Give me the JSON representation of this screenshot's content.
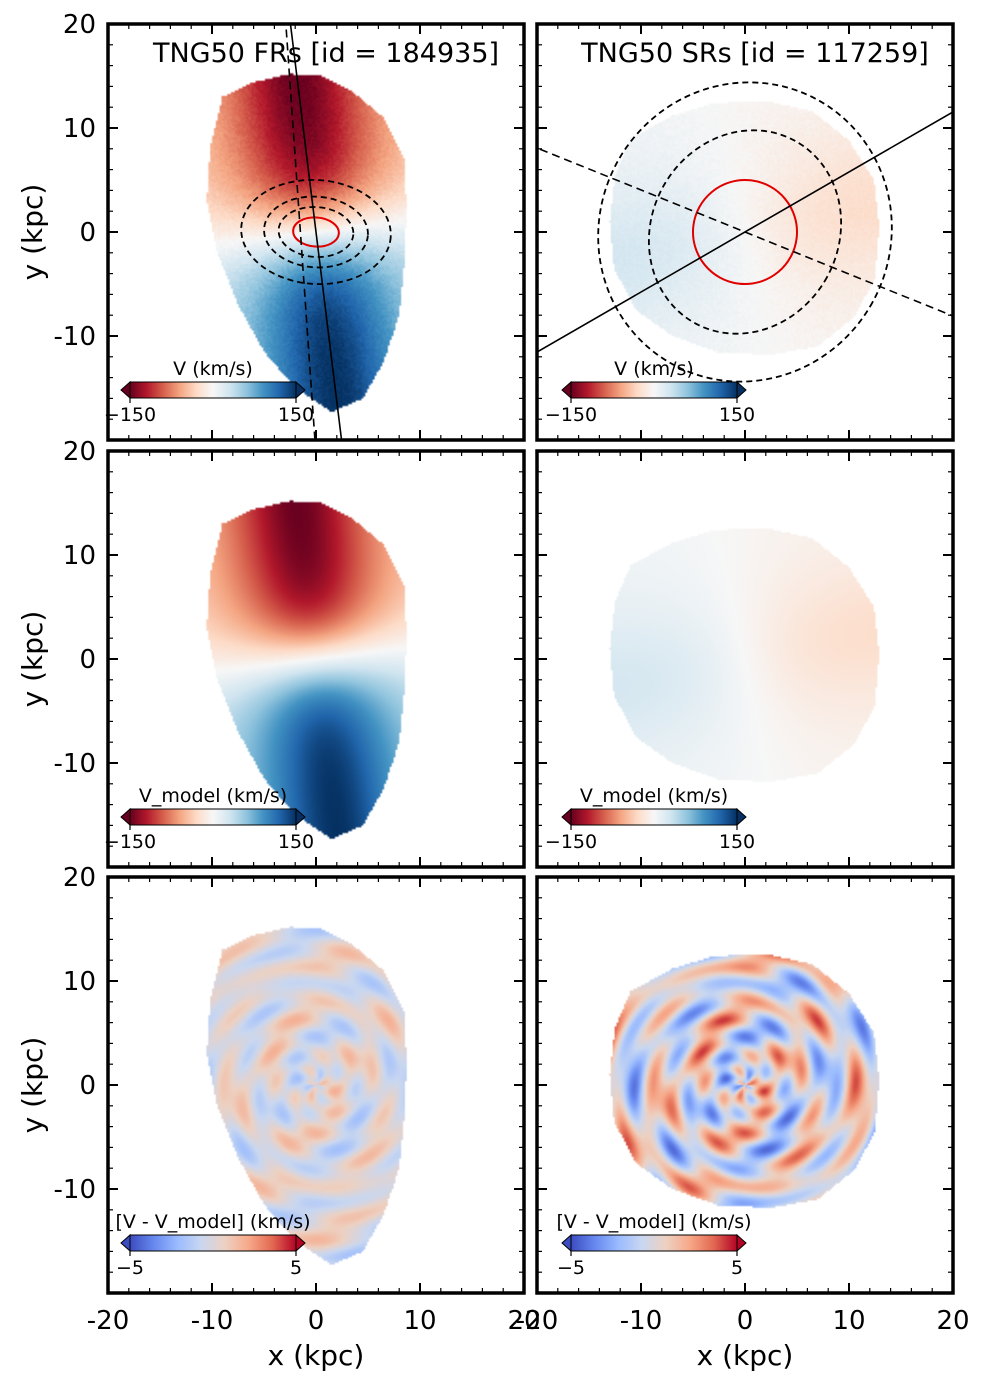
{
  "chart_data": {
    "type": "map",
    "layout": "3 rows x 2 columns, shared x and y axes",
    "xlabel": "x (kpc)",
    "ylabel": "y (kpc)",
    "xlim": [
      -20,
      20
    ],
    "ylim": [
      -20,
      20
    ],
    "x_ticks": [
      "-20",
      "-10",
      "0",
      "10",
      "20"
    ],
    "y_ticks": [
      "-10",
      "0",
      "10",
      "20"
    ],
    "columns": [
      {
        "id": "fr",
        "title": "TNG50 FRs [id = 184935]",
        "galaxy": {
          "outline_kpc": [
            [
              -9.0,
              13.0
            ],
            [
              -6,
              14.4
            ],
            [
              -2.5,
              15.2
            ],
            [
              0.5,
              15.0
            ],
            [
              3.5,
              13.5
            ],
            [
              6.5,
              11.0
            ],
            [
              8.5,
              7.0
            ],
            [
              8.7,
              2.0
            ],
            [
              8.5,
              -3.0
            ],
            [
              8.0,
              -8.0
            ],
            [
              6.5,
              -12.5
            ],
            [
              4.5,
              -16.0
            ],
            [
              1.5,
              -17.3
            ],
            [
              -2.0,
              -15.0
            ],
            [
              -5.0,
              -11.5
            ],
            [
              -7.5,
              -7.0
            ],
            [
              -9.5,
              -2.0
            ],
            [
              -10.5,
              3.0
            ],
            [
              -10.2,
              8.0
            ]
          ],
          "kinematic_pa_deg": 97,
          "position_angle_deg": 75
        },
        "panels": [
          {
            "id": "observed",
            "quantity": "mean line-of-sight velocity",
            "colorbar": {
              "label": "V (km/s)",
              "min_label": "−150",
              "max_label": "150",
              "range": [
                -150,
                150
              ],
              "colormap": "RdBu",
              "colors": [
                "#67001f",
                "#b2182b",
                "#d6604d",
                "#f4a582",
                "#fddbc7",
                "#f7f7f7",
                "#d1e5f0",
                "#92c5de",
                "#4393c3",
                "#2166ac",
                "#053061"
              ]
            },
            "velocity_field": {
              "vmax": 150,
              "rot_deg": 97,
              "amplitude": 150,
              "scale_kpc": 5.0
            },
            "ellipses_kpc": [
              {
                "cx": 0,
                "cy": 0,
                "a": 3.6,
                "b": 2.4,
                "color": "#000000",
                "dash": true
              },
              {
                "cx": 0,
                "cy": 0,
                "a": 5.0,
                "b": 3.4,
                "color": "#000000",
                "dash": true
              },
              {
                "cx": 0,
                "cy": 0,
                "a": 7.2,
                "b": 5.0,
                "color": "#000000",
                "dash": true
              },
              {
                "cx": 0,
                "cy": 0,
                "a": 2.2,
                "b": 1.4,
                "color": "#e00000",
                "dash": false
              }
            ],
            "lines": [
              {
                "angle_deg": 97,
                "style": "solid",
                "through": [
                  0,
                  0
                ]
              },
              {
                "angle_deg": 94,
                "style": "dashed",
                "through": [
                  -1.5,
                  0
                ]
              }
            ],
            "noise": 0.06
          },
          {
            "id": "model",
            "quantity": "model velocity",
            "colorbar": {
              "label": "V_model (km/s)",
              "min_label": "−150",
              "max_label": "150",
              "range": [
                -150,
                150
              ],
              "colormap": "RdBu",
              "colors": [
                "#67001f",
                "#b2182b",
                "#d6604d",
                "#f4a582",
                "#fddbc7",
                "#f7f7f7",
                "#d1e5f0",
                "#92c5de",
                "#4393c3",
                "#2166ac",
                "#053061"
              ]
            },
            "velocity_field": {
              "vmax": 150,
              "rot_deg": 97,
              "amplitude": 150,
              "scale_kpc": 5.0
            },
            "noise": 0.0
          },
          {
            "id": "residual",
            "quantity": "residual velocity",
            "colorbar": {
              "label": "[V - V_model] (km/s)",
              "min_label": "−5",
              "max_label": "5",
              "range": [
                -5,
                5
              ],
              "colormap": "coolwarm",
              "colors": [
                "#3b4cc0",
                "#6788ee",
                "#9abbff",
                "#c9d7f0",
                "#edd1c2",
                "#f7a889",
                "#e26952",
                "#b40426"
              ]
            },
            "residual_field": {
              "vmax": 5,
              "amplitude": 1.4
            },
            "noise": 0.0
          }
        ]
      },
      {
        "id": "sr",
        "title": "TNG50 SRs [id = 117259]",
        "galaxy": {
          "outline_kpc": [
            [
              -11.0,
              9.0
            ],
            [
              -7.0,
              11.2
            ],
            [
              -3.0,
              12.4
            ],
            [
              2.0,
              12.6
            ],
            [
              6.5,
              11.6
            ],
            [
              10.0,
              8.8
            ],
            [
              12.4,
              5.0
            ],
            [
              12.9,
              0.5
            ],
            [
              12.5,
              -4.5
            ],
            [
              10.5,
              -8.2
            ],
            [
              7.0,
              -11.0
            ],
            [
              2.5,
              -11.8
            ],
            [
              -2.5,
              -11.6
            ],
            [
              -7.0,
              -10.0
            ],
            [
              -10.5,
              -7.5
            ],
            [
              -12.6,
              -3.5
            ],
            [
              -13.0,
              1.0
            ],
            [
              -12.5,
              5.5
            ]
          ],
          "kinematic_pa_deg": 28,
          "position_angle_deg": -25
        },
        "panels": [
          {
            "id": "observed",
            "quantity": "mean line-of-sight velocity",
            "colorbar": {
              "label": "V (km/s)",
              "min_label": "−150",
              "max_label": "150",
              "range": [
                -150,
                150
              ],
              "colormap": "RdBu",
              "colors": [
                "#67001f",
                "#b2182b",
                "#d6604d",
                "#f4a582",
                "#fddbc7",
                "#f7f7f7",
                "#d1e5f0",
                "#92c5de",
                "#4393c3",
                "#2166ac",
                "#053061"
              ]
            },
            "velocity_field": {
              "vmax": 150,
              "rot_deg": 12,
              "amplitude": 28,
              "scale_kpc": 7.0
            },
            "ellipses_kpc": [
              {
                "cx": 0,
                "cy": 0,
                "a": 9.0,
                "b": 10.0,
                "color": "#000000",
                "dash": true
              },
              {
                "cx": 0,
                "cy": 0,
                "a": 14.0,
                "b": 14.5,
                "color": "#000000",
                "dash": true
              },
              {
                "cx": 0,
                "cy": 0,
                "a": 5.0,
                "b": 5.0,
                "color": "#e00000",
                "dash": false
              }
            ],
            "lines": [
              {
                "angle_deg": 30,
                "style": "solid",
                "through": [
                  0,
                  0
                ]
              },
              {
                "angle_deg": -22,
                "style": "dashed",
                "through": [
                  0,
                  0
                ]
              }
            ],
            "noise": 0.05
          },
          {
            "id": "model",
            "quantity": "model velocity",
            "colorbar": {
              "label": "V_model (km/s)",
              "min_label": "−150",
              "max_label": "150",
              "range": [
                -150,
                150
              ],
              "colormap": "RdBu",
              "colors": [
                "#67001f",
                "#b2182b",
                "#d6604d",
                "#f4a582",
                "#fddbc7",
                "#f7f7f7",
                "#d1e5f0",
                "#92c5de",
                "#4393c3",
                "#2166ac",
                "#053061"
              ]
            },
            "velocity_field": {
              "vmax": 150,
              "rot_deg": 12,
              "amplitude": 28,
              "scale_kpc": 7.0
            },
            "noise": 0.0
          },
          {
            "id": "residual",
            "quantity": "residual velocity",
            "colorbar": {
              "label": "[V - V_model] (km/s)",
              "min_label": "−5",
              "max_label": "5",
              "range": [
                -5,
                5
              ],
              "colormap": "coolwarm",
              "colors": [
                "#3b4cc0",
                "#6788ee",
                "#9abbff",
                "#c9d7f0",
                "#edd1c2",
                "#f7a889",
                "#e26952",
                "#b40426"
              ]
            },
            "residual_field": {
              "vmax": 5,
              "amplitude": 3.2
            },
            "noise": 0.0
          }
        ]
      }
    ]
  }
}
